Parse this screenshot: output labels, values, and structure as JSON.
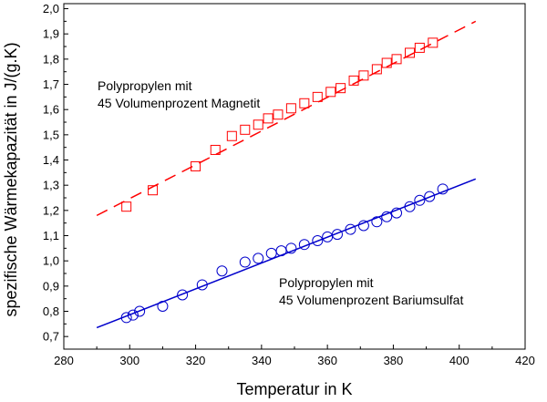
{
  "chart_data": {
    "type": "scatter",
    "title": "",
    "xlabel": "Temperatur in K",
    "ylabel": "spezifische Wärmekapazität in J/(g.K)",
    "xlim": [
      280,
      420
    ],
    "ylim": [
      0.65,
      2.02
    ],
    "x_ticks": [
      280,
      300,
      320,
      340,
      360,
      380,
      400,
      420
    ],
    "x_tick_labels": [
      "280",
      "300",
      "320",
      "340",
      "360",
      "380",
      "400",
      "420"
    ],
    "y_ticks": [
      0.7,
      0.8,
      0.9,
      1.0,
      1.1,
      1.2,
      1.3,
      1.4,
      1.5,
      1.6,
      1.7,
      1.8,
      1.9,
      2.0
    ],
    "y_tick_labels": [
      "0,7",
      "0,8",
      "0,9",
      "1,0",
      "1,1",
      "1,2",
      "1,3",
      "1,4",
      "1,5",
      "1,6",
      "1,7",
      "1,8",
      "1,9",
      "2,0"
    ],
    "grid": false,
    "legend": "none",
    "series": [
      {
        "label_lines": [
          "Polypropylen mit",
          "45 Volumenprozent Magnetit"
        ],
        "marker": "square",
        "color": "#ff0000",
        "fit_style": "dashed",
        "fit": {
          "x": [
            290,
            405
          ],
          "y": [
            1.18,
            1.95
          ]
        },
        "points": [
          [
            299,
            1.215
          ],
          [
            307,
            1.28
          ],
          [
            320,
            1.375
          ],
          [
            326,
            1.44
          ],
          [
            331,
            1.495
          ],
          [
            335,
            1.52
          ],
          [
            339,
            1.54
          ],
          [
            342,
            1.565
          ],
          [
            345,
            1.58
          ],
          [
            349,
            1.605
          ],
          [
            353,
            1.625
          ],
          [
            357,
            1.65
          ],
          [
            361,
            1.67
          ],
          [
            364,
            1.685
          ],
          [
            368,
            1.715
          ],
          [
            371,
            1.735
          ],
          [
            375,
            1.76
          ],
          [
            378,
            1.785
          ],
          [
            381,
            1.8
          ],
          [
            385,
            1.825
          ],
          [
            388,
            1.845
          ],
          [
            392,
            1.865
          ]
        ]
      },
      {
        "label_lines": [
          "Polypropylen mit",
          "45 Volumenprozent Bariumsulfat"
        ],
        "marker": "circle",
        "color": "#0000cc",
        "fit_style": "solid",
        "fit": {
          "x": [
            290,
            405
          ],
          "y": [
            0.735,
            1.325
          ]
        },
        "points": [
          [
            299,
            0.775
          ],
          [
            301,
            0.785
          ],
          [
            303,
            0.8
          ],
          [
            310,
            0.82
          ],
          [
            316,
            0.865
          ],
          [
            322,
            0.905
          ],
          [
            328,
            0.96
          ],
          [
            335,
            0.995
          ],
          [
            339,
            1.01
          ],
          [
            343,
            1.03
          ],
          [
            346,
            1.04
          ],
          [
            349,
            1.05
          ],
          [
            353,
            1.065
          ],
          [
            357,
            1.08
          ],
          [
            360,
            1.095
          ],
          [
            363,
            1.105
          ],
          [
            367,
            1.125
          ],
          [
            371,
            1.14
          ],
          [
            375,
            1.155
          ],
          [
            378,
            1.175
          ],
          [
            381,
            1.19
          ],
          [
            385,
            1.215
          ],
          [
            388,
            1.24
          ],
          [
            391,
            1.255
          ],
          [
            395,
            1.285
          ]
        ]
      }
    ]
  }
}
